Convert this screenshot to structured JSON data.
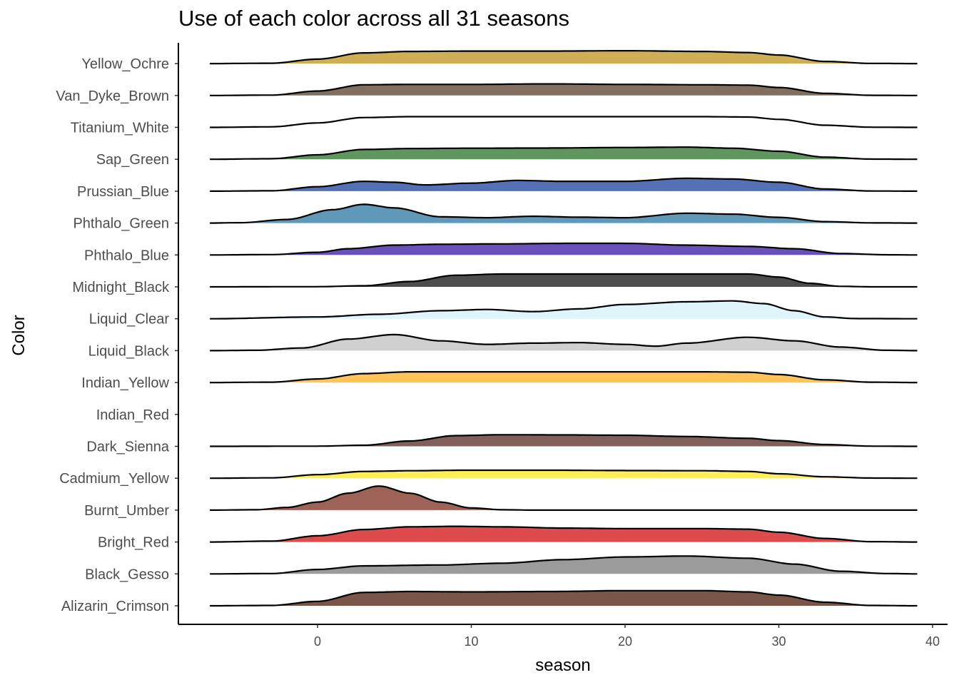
{
  "chart_data": {
    "type": "ridgeline",
    "title": "Use of each color across all 31 seasons",
    "xlabel": "season",
    "ylabel": "Color",
    "xlim": [
      -9,
      41
    ],
    "xticks": [
      0,
      10,
      20,
      30,
      40
    ],
    "density_range": [
      -7,
      39
    ],
    "grid": false,
    "legend": "none",
    "series": [
      {
        "name": "Alizarin_Crimson",
        "fill": "#7A5548",
        "profile": [
          [
            -7,
            0
          ],
          [
            -3,
            0.02
          ],
          [
            0,
            0.25
          ],
          [
            3,
            0.75
          ],
          [
            6,
            0.8
          ],
          [
            10,
            0.78
          ],
          [
            15,
            0.8
          ],
          [
            20,
            0.85
          ],
          [
            25,
            0.85
          ],
          [
            28,
            0.78
          ],
          [
            30,
            0.6
          ],
          [
            33,
            0.2
          ],
          [
            36,
            0.02
          ],
          [
            39,
            0
          ]
        ]
      },
      {
        "name": "Black_Gesso",
        "fill": "#9B9B9B",
        "profile": [
          [
            -7,
            0
          ],
          [
            -3,
            0.02
          ],
          [
            0,
            0.25
          ],
          [
            3,
            0.45
          ],
          [
            8,
            0.5
          ],
          [
            12,
            0.6
          ],
          [
            16,
            0.8
          ],
          [
            20,
            0.95
          ],
          [
            24,
            1.0
          ],
          [
            28,
            0.88
          ],
          [
            31,
            0.55
          ],
          [
            34,
            0.15
          ],
          [
            37,
            0.02
          ],
          [
            39,
            0
          ]
        ]
      },
      {
        "name": "Bright_Red",
        "fill": "#DD4B4C",
        "profile": [
          [
            -7,
            0
          ],
          [
            -3,
            0.05
          ],
          [
            0,
            0.35
          ],
          [
            3,
            0.7
          ],
          [
            6,
            0.85
          ],
          [
            9,
            0.88
          ],
          [
            12,
            0.85
          ],
          [
            16,
            0.78
          ],
          [
            20,
            0.75
          ],
          [
            25,
            0.75
          ],
          [
            28,
            0.72
          ],
          [
            30,
            0.55
          ],
          [
            33,
            0.2
          ],
          [
            36,
            0.02
          ],
          [
            39,
            0
          ]
        ]
      },
      {
        "name": "Burnt_Umber",
        "fill": "#9E6257",
        "profile": [
          [
            -7,
            0
          ],
          [
            -4,
            0.02
          ],
          [
            -2,
            0.15
          ],
          [
            0,
            0.45
          ],
          [
            2,
            0.95
          ],
          [
            4,
            1.35
          ],
          [
            6,
            0.95
          ],
          [
            8,
            0.45
          ],
          [
            10,
            0.12
          ],
          [
            12,
            0.02
          ],
          [
            14,
            0
          ],
          [
            39,
            0
          ]
        ]
      },
      {
        "name": "Cadmium_Yellow",
        "fill": "#FFEE55",
        "profile": [
          [
            -7,
            0
          ],
          [
            -3,
            0.02
          ],
          [
            0,
            0.2
          ],
          [
            3,
            0.38
          ],
          [
            6,
            0.42
          ],
          [
            10,
            0.45
          ],
          [
            15,
            0.45
          ],
          [
            20,
            0.43
          ],
          [
            25,
            0.42
          ],
          [
            28,
            0.38
          ],
          [
            30,
            0.25
          ],
          [
            33,
            0.08
          ],
          [
            36,
            0.01
          ],
          [
            39,
            0
          ]
        ]
      },
      {
        "name": "Dark_Sienna",
        "fill": "#806058",
        "profile": [
          [
            -7,
            0
          ],
          [
            0,
            0.01
          ],
          [
            3,
            0.06
          ],
          [
            6,
            0.3
          ],
          [
            9,
            0.6
          ],
          [
            12,
            0.65
          ],
          [
            16,
            0.64
          ],
          [
            20,
            0.62
          ],
          [
            24,
            0.55
          ],
          [
            28,
            0.45
          ],
          [
            30,
            0.32
          ],
          [
            33,
            0.1
          ],
          [
            36,
            0.01
          ],
          [
            39,
            0
          ]
        ]
      },
      {
        "name": "Indian_Red",
        "fill": "#FFFFFF",
        "profile": []
      },
      {
        "name": "Indian_Yellow",
        "fill": "#FFC35A",
        "profile": [
          [
            -7,
            0
          ],
          [
            -3,
            0.02
          ],
          [
            0,
            0.2
          ],
          [
            3,
            0.5
          ],
          [
            6,
            0.6
          ],
          [
            10,
            0.6
          ],
          [
            15,
            0.6
          ],
          [
            20,
            0.6
          ],
          [
            25,
            0.6
          ],
          [
            28,
            0.58
          ],
          [
            30,
            0.45
          ],
          [
            33,
            0.15
          ],
          [
            36,
            0.02
          ],
          [
            39,
            0
          ]
        ]
      },
      {
        "name": "Liquid_Black",
        "fill": "#D0D0D0",
        "profile": [
          [
            -7,
            0
          ],
          [
            -4,
            0.02
          ],
          [
            -1,
            0.15
          ],
          [
            2,
            0.65
          ],
          [
            5,
            0.9
          ],
          [
            8,
            0.55
          ],
          [
            11,
            0.35
          ],
          [
            14,
            0.42
          ],
          [
            17,
            0.45
          ],
          [
            20,
            0.35
          ],
          [
            22,
            0.25
          ],
          [
            24,
            0.42
          ],
          [
            28,
            0.75
          ],
          [
            31,
            0.55
          ],
          [
            34,
            0.2
          ],
          [
            37,
            0.02
          ],
          [
            39,
            0
          ]
        ]
      },
      {
        "name": "Liquid_Clear",
        "fill": "#DDF5FB",
        "profile": [
          [
            -7,
            0
          ],
          [
            0,
            0.1
          ],
          [
            4,
            0.25
          ],
          [
            8,
            0.45
          ],
          [
            11,
            0.52
          ],
          [
            14,
            0.4
          ],
          [
            17,
            0.55
          ],
          [
            20,
            0.8
          ],
          [
            24,
            0.95
          ],
          [
            27,
            1.0
          ],
          [
            29,
            0.85
          ],
          [
            31,
            0.45
          ],
          [
            33,
            0.1
          ],
          [
            35,
            0.01
          ],
          [
            39,
            0
          ]
        ]
      },
      {
        "name": "Midnight_Black",
        "fill": "#4D4D4D",
        "profile": [
          [
            -7,
            0
          ],
          [
            0,
            0.01
          ],
          [
            3,
            0.06
          ],
          [
            6,
            0.3
          ],
          [
            9,
            0.65
          ],
          [
            12,
            0.72
          ],
          [
            16,
            0.72
          ],
          [
            20,
            0.72
          ],
          [
            24,
            0.72
          ],
          [
            28,
            0.72
          ],
          [
            30,
            0.55
          ],
          [
            32,
            0.2
          ],
          [
            34,
            0.03
          ],
          [
            36,
            0
          ],
          [
            39,
            0
          ]
        ]
      },
      {
        "name": "Phthalo_Blue",
        "fill": "#6A50BB",
        "profile": [
          [
            -7,
            0
          ],
          [
            -3,
            0.02
          ],
          [
            0,
            0.15
          ],
          [
            2,
            0.35
          ],
          [
            5,
            0.55
          ],
          [
            8,
            0.6
          ],
          [
            12,
            0.62
          ],
          [
            16,
            0.65
          ],
          [
            20,
            0.65
          ],
          [
            24,
            0.55
          ],
          [
            28,
            0.48
          ],
          [
            31,
            0.35
          ],
          [
            34,
            0.08
          ],
          [
            37,
            0.01
          ],
          [
            39,
            0
          ]
        ]
      },
      {
        "name": "Phthalo_Green",
        "fill": "#6098BA",
        "profile": [
          [
            -7,
            0
          ],
          [
            -5,
            0.02
          ],
          [
            -2,
            0.2
          ],
          [
            1,
            0.75
          ],
          [
            3,
            1.05
          ],
          [
            5,
            0.85
          ],
          [
            8,
            0.35
          ],
          [
            11,
            0.3
          ],
          [
            14,
            0.38
          ],
          [
            17,
            0.33
          ],
          [
            20,
            0.3
          ],
          [
            24,
            0.55
          ],
          [
            27,
            0.5
          ],
          [
            30,
            0.32
          ],
          [
            33,
            0.08
          ],
          [
            36,
            0.01
          ],
          [
            39,
            0
          ]
        ]
      },
      {
        "name": "Prussian_Blue",
        "fill": "#5470B6",
        "profile": [
          [
            -7,
            0
          ],
          [
            -3,
            0.02
          ],
          [
            0,
            0.25
          ],
          [
            3,
            0.55
          ],
          [
            5,
            0.5
          ],
          [
            7,
            0.35
          ],
          [
            10,
            0.45
          ],
          [
            13,
            0.6
          ],
          [
            16,
            0.55
          ],
          [
            20,
            0.55
          ],
          [
            24,
            0.72
          ],
          [
            27,
            0.68
          ],
          [
            30,
            0.5
          ],
          [
            33,
            0.12
          ],
          [
            36,
            0.01
          ],
          [
            39,
            0
          ]
        ]
      },
      {
        "name": "Sap_Green",
        "fill": "#5E965E",
        "profile": [
          [
            -7,
            0
          ],
          [
            -3,
            0.03
          ],
          [
            0,
            0.25
          ],
          [
            3,
            0.55
          ],
          [
            6,
            0.6
          ],
          [
            10,
            0.62
          ],
          [
            15,
            0.63
          ],
          [
            20,
            0.66
          ],
          [
            24,
            0.68
          ],
          [
            27,
            0.62
          ],
          [
            30,
            0.45
          ],
          [
            33,
            0.12
          ],
          [
            36,
            0.01
          ],
          [
            39,
            0
          ]
        ]
      },
      {
        "name": "Titanium_White",
        "fill": "#FFFFFF",
        "profile": [
          [
            -7,
            0
          ],
          [
            -3,
            0.03
          ],
          [
            0,
            0.25
          ],
          [
            3,
            0.55
          ],
          [
            6,
            0.6
          ],
          [
            10,
            0.6
          ],
          [
            15,
            0.6
          ],
          [
            20,
            0.6
          ],
          [
            25,
            0.6
          ],
          [
            28,
            0.58
          ],
          [
            30,
            0.45
          ],
          [
            33,
            0.12
          ],
          [
            36,
            0.01
          ],
          [
            39,
            0
          ]
        ]
      },
      {
        "name": "Van_Dyke_Brown",
        "fill": "#826E5E",
        "profile": [
          [
            -7,
            0
          ],
          [
            -3,
            0.02
          ],
          [
            0,
            0.25
          ],
          [
            3,
            0.6
          ],
          [
            6,
            0.62
          ],
          [
            10,
            0.62
          ],
          [
            15,
            0.65
          ],
          [
            20,
            0.62
          ],
          [
            25,
            0.6
          ],
          [
            28,
            0.58
          ],
          [
            30,
            0.45
          ],
          [
            33,
            0.12
          ],
          [
            36,
            0.01
          ],
          [
            39,
            0
          ]
        ]
      },
      {
        "name": "Yellow_Ochre",
        "fill": "#CEAF55",
        "profile": [
          [
            -7,
            0
          ],
          [
            -3,
            0.02
          ],
          [
            0,
            0.25
          ],
          [
            3,
            0.6
          ],
          [
            6,
            0.68
          ],
          [
            10,
            0.7
          ],
          [
            15,
            0.7
          ],
          [
            20,
            0.72
          ],
          [
            25,
            0.68
          ],
          [
            28,
            0.62
          ],
          [
            30,
            0.48
          ],
          [
            33,
            0.12
          ],
          [
            36,
            0.01
          ],
          [
            39,
            0
          ]
        ]
      }
    ]
  }
}
